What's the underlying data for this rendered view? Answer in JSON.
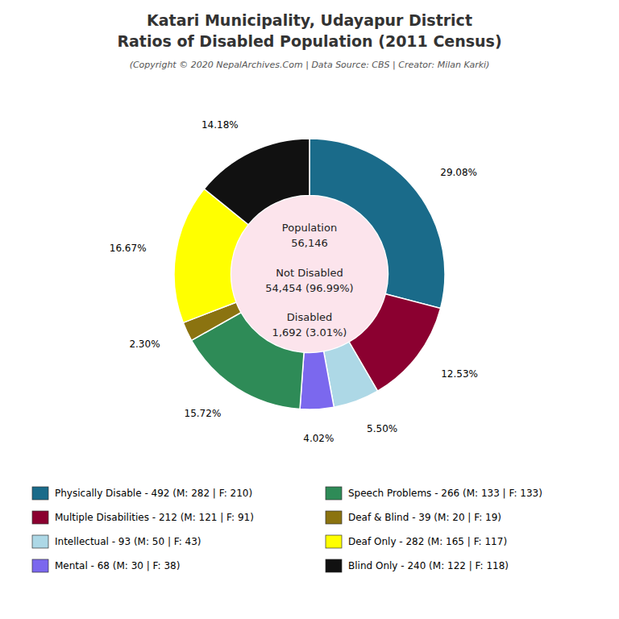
{
  "chart_data": {
    "type": "pie",
    "title": "Katari Municipality, Udayapur District\nRatios of Disabled Population (2011 Census)",
    "subtitle": "(Copyright © 2020 NepalArchives.Com | Data Source: CBS | Creator: Milan Karki)",
    "categories": [
      "Physically Disable - 492 (M: 282 | F: 210)",
      "Multiple Disabilities - 212 (M: 121 | F: 91)",
      "Intellectual - 93 (M: 50 | F: 43)",
      "Mental - 68 (M: 30 | F: 38)",
      "Speech Problems - 266 (M: 133 | F: 133)",
      "Deaf & Blind - 39 (M: 20 | F: 19)",
      "Deaf Only - 282 (M: 165 | F: 117)",
      "Blind Only - 240 (M: 122 | F: 118)"
    ],
    "values": [
      29.08,
      12.53,
      5.5,
      4.02,
      15.72,
      2.3,
      16.67,
      14.18
    ],
    "value_labels": [
      "29.08%",
      "12.53%",
      "5.50%",
      "4.02%",
      "15.72%",
      "2.30%",
      "16.67%",
      "14.18%"
    ],
    "colors": [
      "#1a6b8a",
      "#8b0030",
      "#add8e6",
      "#7b68ee",
      "#2e8b57",
      "#8b7310",
      "#ffff00",
      "#111111"
    ],
    "data_labels": true,
    "legend": "bottom",
    "annotations": [
      "Population\n56,146",
      "Not Disabled\n54,454 (96.99%)",
      "Disabled\n1,692 (3.01%)"
    ]
  }
}
